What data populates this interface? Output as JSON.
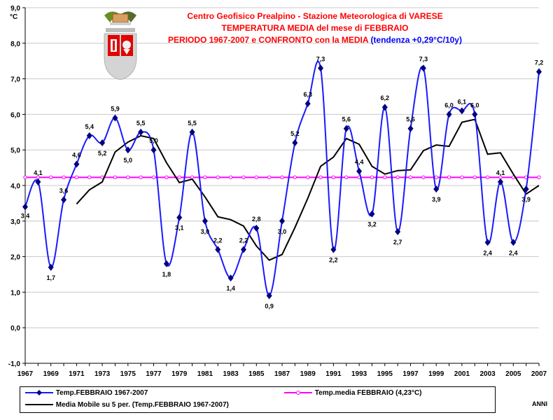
{
  "title": {
    "line1": "Centro Geofisico Prealpino - Stazione Meteorologica di VARESE",
    "line2": "TEMPERATURA MEDIA del mese di FEBBRAIO",
    "line3": "PERIODO 1967-2007 e CONFRONTO con la MEDIA",
    "line3_trend": "(tendenza +0,29°C/10y)"
  },
  "axis_unit": "°C",
  "x_axis_word": "ANNI",
  "colors": {
    "series": "#1a1aff",
    "marker": "#000080",
    "mean": "#ff00ff",
    "moving": "#000000",
    "title": "#ff0000",
    "trend": "#0000ff",
    "grid": "#c8c8c8"
  },
  "crest_icon": "varese-coat-of-arms",
  "chart_data": {
    "type": "line",
    "x": [
      1967,
      1968,
      1969,
      1970,
      1971,
      1972,
      1973,
      1974,
      1975,
      1976,
      1977,
      1978,
      1979,
      1980,
      1981,
      1982,
      1983,
      1984,
      1985,
      1986,
      1987,
      1988,
      1989,
      1990,
      1991,
      1992,
      1993,
      1994,
      1995,
      1996,
      1997,
      1998,
      1999,
      2000,
      2001,
      2002,
      2003,
      2004,
      2005,
      2006,
      2007
    ],
    "x_ticks": [
      1967,
      1969,
      1971,
      1973,
      1975,
      1977,
      1979,
      1981,
      1983,
      1985,
      1987,
      1989,
      1991,
      1993,
      1995,
      1997,
      1999,
      2001,
      2003,
      2005,
      2007
    ],
    "ylim": [
      -1,
      9
    ],
    "y_ticks": [
      "-1,0",
      "0,0",
      "1,0",
      "2,0",
      "3,0",
      "4,0",
      "5,0",
      "6,0",
      "7,0",
      "8,0",
      "9,0"
    ],
    "grid": "horizontal",
    "legend_position": "bottom",
    "series": [
      {
        "name": "Temp.FEBBRAIO 1967-2007",
        "values": [
          3.4,
          4.1,
          1.7,
          3.6,
          4.6,
          5.4,
          5.2,
          5.9,
          5.0,
          5.5,
          5.0,
          1.8,
          3.1,
          5.5,
          3.0,
          2.2,
          1.4,
          2.2,
          2.8,
          0.9,
          3.0,
          5.2,
          6.3,
          7.3,
          2.2,
          5.6,
          4.4,
          3.2,
          6.2,
          2.7,
          5.6,
          7.3,
          3.9,
          6.0,
          6.1,
          6.0,
          2.4,
          4.1,
          2.4,
          3.9,
          7.2
        ],
        "labels": [
          "3,4",
          "4,1",
          "1,7",
          "3,6",
          "4,6",
          "5,4",
          "5,2",
          "5,9",
          "5,0",
          "5,5",
          "5,0",
          "1,8",
          "3,1",
          "5,5",
          "3,0",
          "2,2",
          "1,4",
          "2,2",
          "2,8",
          "0,9",
          "3,0",
          "5,2",
          "6,3",
          "7,3",
          "2,2",
          "5,6",
          "4,4",
          "3,2",
          "6,2",
          "2,7",
          "5,6",
          "7,3",
          "3,9",
          "6,0",
          "6,1",
          "6,0",
          "2,4",
          "4,1",
          "2,4",
          "3,9",
          "7,2"
        ]
      },
      {
        "name": "Temp.media FEBBRAIO (4,23°C)",
        "values": [
          4.23,
          4.23,
          4.23,
          4.23,
          4.23,
          4.23,
          4.23,
          4.23,
          4.23,
          4.23,
          4.23,
          4.23,
          4.23,
          4.23,
          4.23,
          4.23,
          4.23,
          4.23,
          4.23,
          4.23,
          4.23,
          4.23,
          4.23,
          4.23,
          4.23,
          4.23,
          4.23,
          4.23,
          4.23,
          4.23,
          4.23,
          4.23,
          4.23,
          4.23,
          4.23,
          4.23,
          4.23,
          4.23,
          4.23,
          4.23,
          4.23
        ]
      },
      {
        "name": "Media Mobile su 5 per. (Temp.FEBBRAIO 1967-2007)",
        "x": [
          1971,
          1972,
          1973,
          1974,
          1975,
          1976,
          1977,
          1978,
          1979,
          1980,
          1981,
          1982,
          1983,
          1984,
          1985,
          1986,
          1987,
          1988,
          1989,
          1990,
          1991,
          1992,
          1993,
          1994,
          1995,
          1996,
          1997,
          1998,
          1999,
          2000,
          2001,
          2002,
          2003,
          2004,
          2005,
          2006,
          2007
        ],
        "values": [
          3.48,
          3.88,
          4.1,
          4.94,
          5.22,
          5.4,
          5.32,
          4.64,
          4.08,
          4.18,
          3.68,
          3.12,
          3.04,
          2.86,
          2.3,
          1.9,
          2.06,
          2.82,
          3.64,
          4.54,
          4.8,
          5.32,
          5.16,
          4.54,
          4.32,
          4.42,
          4.44,
          4.98,
          5.14,
          5.1,
          5.78,
          5.86,
          4.88,
          4.92,
          4.32,
          3.76,
          4.0
        ]
      }
    ]
  }
}
